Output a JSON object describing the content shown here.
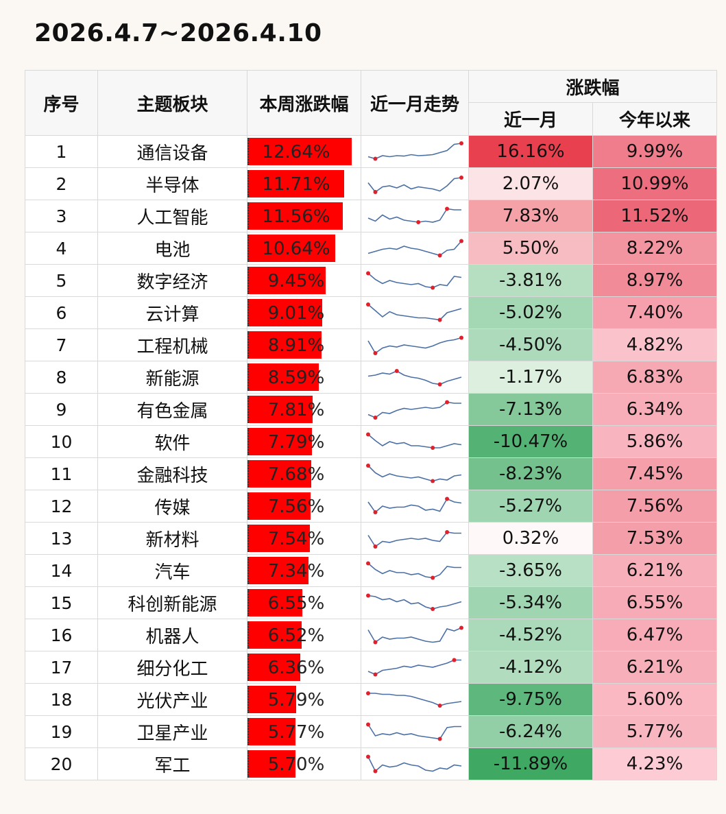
{
  "title": "2026.4.7~2026.4.10",
  "header": {
    "idx": "序号",
    "sector": "主题板块",
    "weekly": "本周涨跌幅",
    "trend": "近一月走势",
    "change_group": "涨跌幅",
    "month": "近一月",
    "ytd": "今年以来"
  },
  "colors": {
    "bar": "#ff0000",
    "up_strong": "#e8404e",
    "down_strong": "#3fa964",
    "sparkline": "#4a6fa5",
    "marker": "#e0202a"
  },
  "chart_data": {
    "type": "table",
    "title": "2026.4.7~2026.4.10",
    "columns": [
      "序号",
      "主题板块",
      "本周涨跌幅",
      "近一月走势",
      "近一月",
      "今年以来"
    ],
    "rows": [
      {
        "idx": "1",
        "sector": "通信设备",
        "weekly": 12.64,
        "weekly_text": "12.64%",
        "month": 16.16,
        "month_text": "16.16%",
        "ytd": 9.99,
        "ytd_text": "9.99%",
        "trend": [
          0.25,
          0.15,
          0.3,
          0.25,
          0.3,
          0.28,
          0.35,
          0.3,
          0.32,
          0.35,
          0.45,
          0.55,
          0.85,
          0.9
        ]
      },
      {
        "idx": "2",
        "sector": "半导体",
        "weekly": 11.71,
        "weekly_text": "11.71%",
        "month": 2.07,
        "month_text": "2.07%",
        "ytd": 10.99,
        "ytd_text": "10.99%",
        "trend": [
          0.55,
          0.1,
          0.35,
          0.4,
          0.3,
          0.45,
          0.25,
          0.35,
          0.3,
          0.25,
          0.15,
          0.4,
          0.75,
          0.8
        ]
      },
      {
        "idx": "3",
        "sector": "人工智能",
        "weekly": 11.56,
        "weekly_text": "11.56%",
        "month": 7.83,
        "month_text": "7.83%",
        "ytd": 11.52,
        "ytd_text": "11.52%",
        "trend": [
          0.4,
          0.25,
          0.55,
          0.35,
          0.45,
          0.3,
          0.25,
          0.2,
          0.25,
          0.2,
          0.3,
          0.85,
          0.8,
          0.8
        ]
      },
      {
        "idx": "4",
        "sector": "电池",
        "weekly": 10.64,
        "weekly_text": "10.64%",
        "month": 5.5,
        "month_text": "5.50%",
        "ytd": 8.22,
        "ytd_text": "8.22%",
        "trend": [
          0.25,
          0.35,
          0.45,
          0.5,
          0.45,
          0.6,
          0.5,
          0.45,
          0.35,
          0.25,
          0.15,
          0.4,
          0.45,
          0.85
        ]
      },
      {
        "idx": "5",
        "sector": "数字经济",
        "weekly": 9.45,
        "weekly_text": "9.45%",
        "month": -3.81,
        "month_text": "-3.81%",
        "ytd": 8.97,
        "ytd_text": "8.97%",
        "trend": [
          0.85,
          0.55,
          0.35,
          0.5,
          0.4,
          0.35,
          0.3,
          0.35,
          0.2,
          0.15,
          0.3,
          0.25,
          0.7,
          0.65
        ]
      },
      {
        "idx": "6",
        "sector": "云计算",
        "weekly": 9.01,
        "weekly_text": "9.01%",
        "month": -5.02,
        "month_text": "-5.02%",
        "ytd": 7.4,
        "ytd_text": "7.40%",
        "trend": [
          0.9,
          0.6,
          0.3,
          0.55,
          0.4,
          0.35,
          0.3,
          0.25,
          0.25,
          0.2,
          0.15,
          0.5,
          0.6,
          0.7
        ]
      },
      {
        "idx": "7",
        "sector": "工程机械",
        "weekly": 8.91,
        "weekly_text": "8.91%",
        "month": -4.5,
        "month_text": "-4.50%",
        "ytd": 4.82,
        "ytd_text": "4.82%",
        "trend": [
          0.7,
          0.1,
          0.35,
          0.45,
          0.4,
          0.5,
          0.45,
          0.4,
          0.35,
          0.45,
          0.6,
          0.7,
          0.75,
          0.85
        ]
      },
      {
        "idx": "8",
        "sector": "新能源",
        "weekly": 8.59,
        "weekly_text": "8.59%",
        "month": -1.17,
        "month_text": "-1.17%",
        "ytd": 6.83,
        "ytd_text": "6.83%",
        "trend": [
          0.55,
          0.6,
          0.7,
          0.65,
          0.8,
          0.6,
          0.5,
          0.45,
          0.35,
          0.2,
          0.15,
          0.3,
          0.4,
          0.5
        ]
      },
      {
        "idx": "9",
        "sector": "有色金属",
        "weekly": 7.81,
        "weekly_text": "7.81%",
        "month": -7.13,
        "month_text": "-7.13%",
        "ytd": 6.34,
        "ytd_text": "6.34%",
        "trend": [
          0.25,
          0.1,
          0.35,
          0.3,
          0.45,
          0.55,
          0.5,
          0.55,
          0.6,
          0.55,
          0.6,
          0.85,
          0.8,
          0.8
        ]
      },
      {
        "idx": "10",
        "sector": "软件",
        "weekly": 7.79,
        "weekly_text": "7.79%",
        "month": -10.47,
        "month_text": "-10.47%",
        "ytd": 5.86,
        "ytd_text": "5.86%",
        "trend": [
          0.85,
          0.55,
          0.3,
          0.5,
          0.4,
          0.45,
          0.3,
          0.3,
          0.25,
          0.2,
          0.2,
          0.3,
          0.4,
          0.35
        ]
      },
      {
        "idx": "11",
        "sector": "金融科技",
        "weekly": 7.68,
        "weekly_text": "7.68%",
        "month": -8.23,
        "month_text": "-8.23%",
        "ytd": 7.45,
        "ytd_text": "7.45%",
        "trend": [
          0.9,
          0.55,
          0.35,
          0.5,
          0.4,
          0.35,
          0.3,
          0.35,
          0.25,
          0.15,
          0.25,
          0.2,
          0.4,
          0.45
        ]
      },
      {
        "idx": "12",
        "sector": "传媒",
        "weekly": 7.56,
        "weekly_text": "7.56%",
        "month": -5.27,
        "month_text": "-5.27%",
        "ytd": 7.56,
        "ytd_text": "7.56%",
        "trend": [
          0.7,
          0.2,
          0.5,
          0.4,
          0.45,
          0.45,
          0.55,
          0.5,
          0.3,
          0.35,
          0.25,
          0.85,
          0.7,
          0.65
        ]
      },
      {
        "idx": "13",
        "sector": "新材料",
        "weekly": 7.54,
        "weekly_text": "7.54%",
        "month": 0.32,
        "month_text": "0.32%",
        "ytd": 7.53,
        "ytd_text": "7.53%",
        "trend": [
          0.65,
          0.1,
          0.35,
          0.3,
          0.4,
          0.45,
          0.5,
          0.45,
          0.5,
          0.4,
          0.35,
          0.8,
          0.75,
          0.75
        ]
      },
      {
        "idx": "14",
        "sector": "汽车",
        "weekly": 7.34,
        "weekly_text": "7.34%",
        "month": -3.65,
        "month_text": "-3.65%",
        "ytd": 6.21,
        "ytd_text": "6.21%",
        "trend": [
          0.85,
          0.55,
          0.35,
          0.5,
          0.4,
          0.4,
          0.3,
          0.35,
          0.2,
          0.15,
          0.3,
          0.7,
          0.65,
          0.65
        ]
      },
      {
        "idx": "15",
        "sector": "科创新能源",
        "weekly": 6.55,
        "weekly_text": "6.55%",
        "month": -5.34,
        "month_text": "-5.34%",
        "ytd": 6.55,
        "ytd_text": "6.55%",
        "trend": [
          0.85,
          0.8,
          0.65,
          0.7,
          0.55,
          0.65,
          0.45,
          0.5,
          0.3,
          0.2,
          0.3,
          0.35,
          0.45,
          0.55
        ]
      },
      {
        "idx": "16",
        "sector": "机器人",
        "weekly": 6.52,
        "weekly_text": "6.52%",
        "month": -4.52,
        "month_text": "-4.52%",
        "ytd": 6.47,
        "ytd_text": "6.47%",
        "trend": [
          0.75,
          0.15,
          0.4,
          0.3,
          0.35,
          0.35,
          0.4,
          0.3,
          0.2,
          0.15,
          0.2,
          0.8,
          0.7,
          0.85
        ]
      },
      {
        "idx": "17",
        "sector": "细分化工",
        "weekly": 6.36,
        "weekly_text": "6.36%",
        "month": -4.12,
        "month_text": "-4.12%",
        "ytd": 6.21,
        "ytd_text": "6.21%",
        "trend": [
          0.3,
          0.15,
          0.35,
          0.4,
          0.45,
          0.55,
          0.5,
          0.6,
          0.55,
          0.5,
          0.6,
          0.7,
          0.85,
          0.85
        ]
      },
      {
        "idx": "18",
        "sector": "光伏产业",
        "weekly": 5.79,
        "weekly_text": "5.79%",
        "month": -9.75,
        "month_text": "-9.75%",
        "ytd": 5.6,
        "ytd_text": "5.60%",
        "trend": [
          0.8,
          0.8,
          0.75,
          0.75,
          0.7,
          0.7,
          0.65,
          0.55,
          0.45,
          0.35,
          0.2,
          0.3,
          0.35,
          0.4
        ]
      },
      {
        "idx": "19",
        "sector": "卫星产业",
        "weekly": 5.77,
        "weekly_text": "5.77%",
        "month": -6.24,
        "month_text": "-6.24%",
        "ytd": 5.77,
        "ytd_text": "5.77%",
        "trend": [
          0.85,
          0.3,
          0.4,
          0.35,
          0.45,
          0.35,
          0.4,
          0.3,
          0.25,
          0.2,
          0.15,
          0.7,
          0.75,
          0.75
        ]
      },
      {
        "idx": "20",
        "sector": "军工",
        "weekly": 5.7,
        "weekly_text": "5.70%",
        "month": -11.89,
        "month_text": "-11.89%",
        "ytd": 4.23,
        "ytd_text": "4.23%",
        "trend": [
          0.85,
          0.15,
          0.45,
          0.35,
          0.4,
          0.55,
          0.45,
          0.4,
          0.2,
          0.15,
          0.3,
          0.25,
          0.45,
          0.4
        ]
      }
    ]
  }
}
